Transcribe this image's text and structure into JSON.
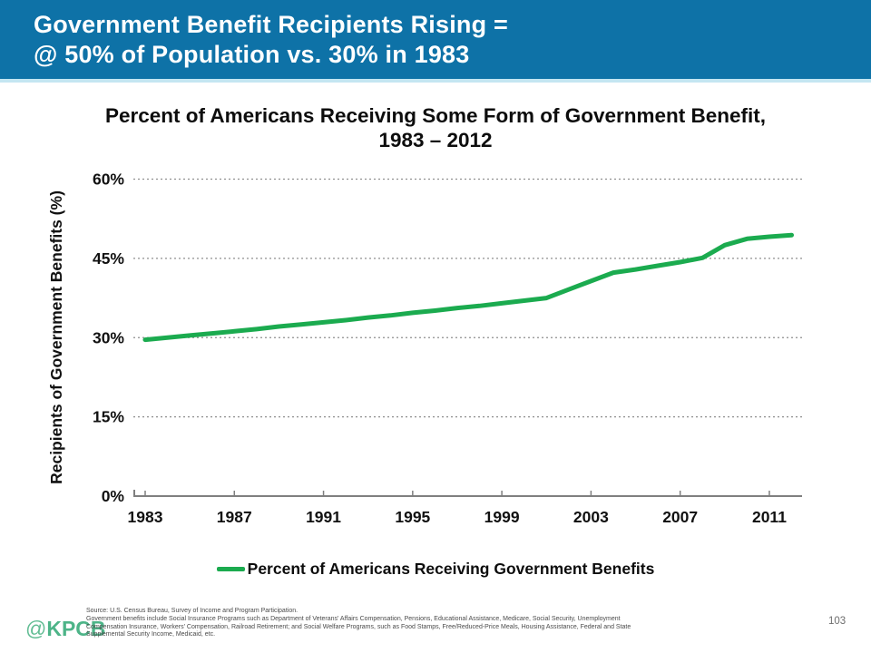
{
  "slide": {
    "header": {
      "title_line1": "Government Benefit Recipients Rising =",
      "title_line2": "@ 50% of Population vs. 30% in 1983",
      "bg_color": "#0E72A7"
    },
    "footer": {
      "logo_at": "@",
      "logo_text": "KPCB",
      "logo_color": "#4DB488",
      "source_lines": [
        "Source: U.S. Census Bureau, Survey of Income and Program Participation.",
        "Government benefits include Social Insurance Programs such as Department of Veterans' Affairs Compensation, Pensions, Educational Assistance, Medicare, Social Security, Unemployment",
        "Compensation Insurance, Workers' Compensation, Railroad Retirement; and Social Welfare Programs, such as Food Stamps, Free/Reduced-Price Meals, Housing Assistance, Federal and State",
        "Supplemental Security Income, Medicaid, etc."
      ],
      "page_number": "103"
    }
  },
  "chart_data": {
    "type": "line",
    "title_line1": "Percent of Americans Receiving Some Form of Government Benefit,",
    "title_line2": "1983 – 2012",
    "ylabel": "Recipients of Government Benefits (%)",
    "xlabel": "",
    "ylim": [
      0,
      60
    ],
    "yticks": [
      0,
      15,
      30,
      45,
      60
    ],
    "ytick_suffix": "%",
    "xticks": [
      1983,
      1987,
      1991,
      1995,
      1999,
      2003,
      2007,
      2011
    ],
    "grid": "horizontal-dotted",
    "legend_position": "bottom",
    "x": [
      1983,
      1984,
      1985,
      1986,
      1987,
      1988,
      1989,
      1990,
      1991,
      1992,
      1993,
      1994,
      1995,
      1996,
      1997,
      1998,
      1999,
      2000,
      2001,
      2002,
      2003,
      2004,
      2005,
      2006,
      2007,
      2008,
      2009,
      2010,
      2011,
      2012
    ],
    "series": [
      {
        "name": "Percent of Americans Receiving Government Benefits",
        "color": "#1BAB4F",
        "values": [
          29.6,
          30.0,
          30.4,
          30.8,
          31.2,
          31.6,
          32.1,
          32.5,
          32.9,
          33.3,
          33.8,
          34.2,
          34.7,
          35.1,
          35.6,
          36.0,
          36.5,
          37.0,
          37.5,
          39.1,
          40.7,
          42.3,
          42.9,
          43.6,
          44.3,
          45.1,
          47.5,
          48.7,
          49.1,
          49.4
        ]
      }
    ]
  }
}
